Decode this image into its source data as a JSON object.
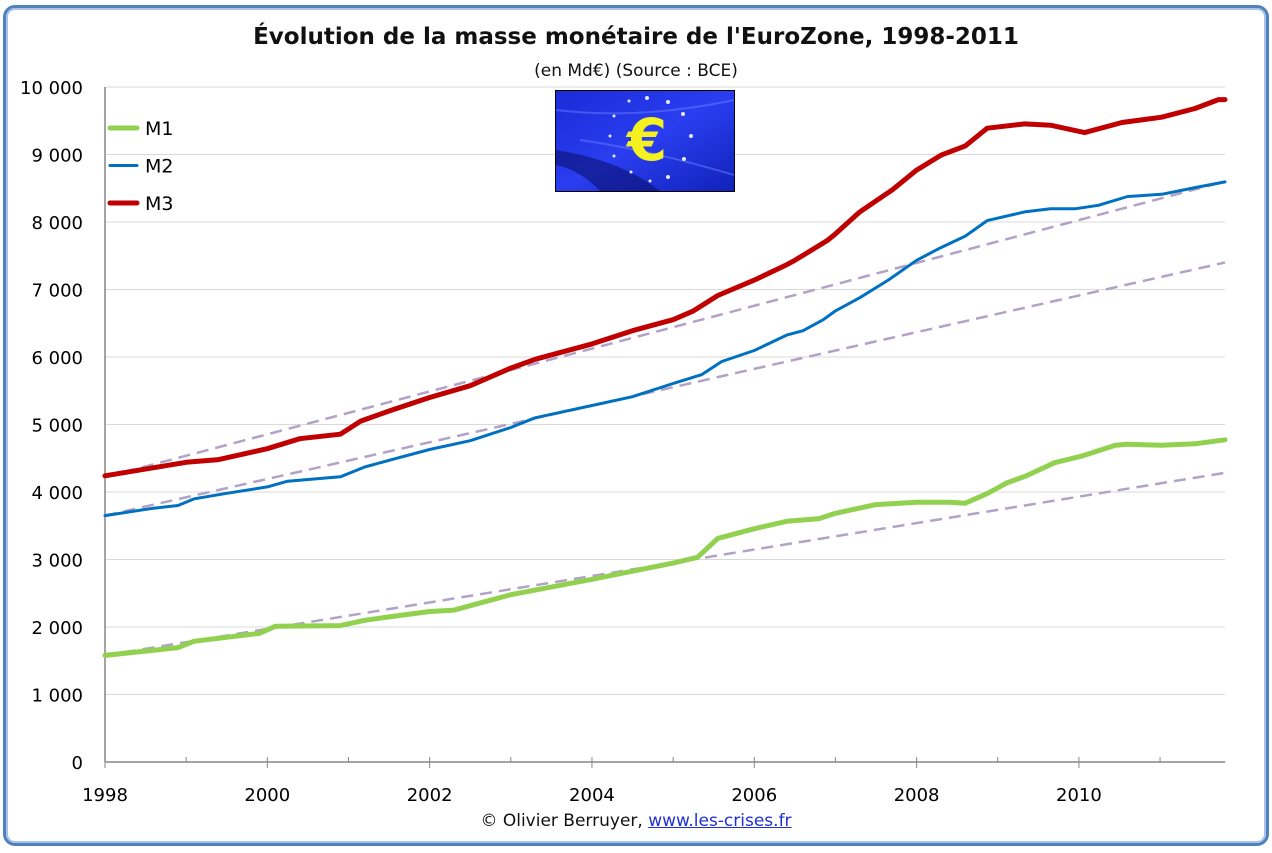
{
  "chart_data": {
    "type": "line",
    "title": "Évolution de la masse monétaire de l'EuroZone, 1998-2011",
    "subtitle": "(en Md€) (Source : BCE)",
    "xlabel": "",
    "ylabel": "",
    "xlim": [
      1998,
      2011.8
    ],
    "ylim": [
      0,
      10000
    ],
    "x_tick_labels": [
      "1998",
      "2000",
      "2002",
      "2004",
      "2006",
      "2008",
      "2010"
    ],
    "y_tick_labels": [
      "0",
      "1 000",
      "2 000",
      "3 000",
      "4 000",
      "5 000",
      "6 000",
      "7 000",
      "8 000",
      "9 000",
      "10 000"
    ],
    "grid": true,
    "legend_position": "top-left",
    "series": [
      {
        "name": "M1",
        "color": "#92d050",
        "points": [
          [
            1998,
            1580
          ],
          [
            1998.9,
            1695
          ],
          [
            1999.1,
            1790
          ],
          [
            1999.9,
            1905
          ],
          [
            2000.1,
            2010
          ],
          [
            2000.9,
            2020
          ],
          [
            2001.2,
            2100
          ],
          [
            2001.5,
            2150
          ],
          [
            2002,
            2230
          ],
          [
            2002.3,
            2250
          ],
          [
            2003,
            2478
          ],
          [
            2004,
            2706
          ],
          [
            2005,
            2947
          ],
          [
            2005.3,
            3032
          ],
          [
            2005.55,
            3312
          ],
          [
            2006,
            3456
          ],
          [
            2006.4,
            3566
          ],
          [
            2006.8,
            3606
          ],
          [
            2007,
            3684
          ],
          [
            2007.5,
            3814
          ],
          [
            2008,
            3847
          ],
          [
            2008.4,
            3847
          ],
          [
            2008.6,
            3834
          ],
          [
            2008.87,
            3977
          ],
          [
            2009.12,
            4140
          ],
          [
            2009.35,
            4238
          ],
          [
            2009.7,
            4434
          ],
          [
            2010.03,
            4531
          ],
          [
            2010.45,
            4694
          ],
          [
            2010.6,
            4707
          ],
          [
            2011.02,
            4694
          ],
          [
            2011.43,
            4714
          ],
          [
            2011.8,
            4773
          ]
        ]
      },
      {
        "name": "M2",
        "color": "#0070c0",
        "points": [
          [
            1998,
            3650
          ],
          [
            1998.6,
            3760
          ],
          [
            1998.9,
            3800
          ],
          [
            1999.1,
            3900
          ],
          [
            1999.5,
            3980
          ],
          [
            2000,
            4075
          ],
          [
            2000.25,
            4160
          ],
          [
            2000.9,
            4225
          ],
          [
            2001.2,
            4370
          ],
          [
            2001.5,
            4470
          ],
          [
            2002,
            4629
          ],
          [
            2002.5,
            4760
          ],
          [
            2003,
            4955
          ],
          [
            2003.3,
            5099
          ],
          [
            2004,
            5281
          ],
          [
            2004.5,
            5412
          ],
          [
            2005,
            5607
          ],
          [
            2005.35,
            5738
          ],
          [
            2005.6,
            5933
          ],
          [
            2006,
            6096
          ],
          [
            2006.4,
            6324
          ],
          [
            2006.6,
            6390
          ],
          [
            2006.85,
            6553
          ],
          [
            2007,
            6683
          ],
          [
            2007.3,
            6879
          ],
          [
            2007.65,
            7139
          ],
          [
            2008,
            7433
          ],
          [
            2008.3,
            7620
          ],
          [
            2008.6,
            7791
          ],
          [
            2008.87,
            8020
          ],
          [
            2009.33,
            8150
          ],
          [
            2009.65,
            8196
          ],
          [
            2009.95,
            8196
          ],
          [
            2010.24,
            8248
          ],
          [
            2010.6,
            8378
          ],
          [
            2011.02,
            8411
          ],
          [
            2011.43,
            8509
          ],
          [
            2011.8,
            8594
          ]
        ]
      },
      {
        "name": "M3",
        "color": "#c00000",
        "points": [
          [
            1998,
            4240
          ],
          [
            1999,
            4440
          ],
          [
            1999.4,
            4480
          ],
          [
            2000,
            4642
          ],
          [
            2000.4,
            4790
          ],
          [
            2000.9,
            4857
          ],
          [
            2001.15,
            5050
          ],
          [
            2001.5,
            5200
          ],
          [
            2002,
            5400
          ],
          [
            2002.5,
            5575
          ],
          [
            2003,
            5835
          ],
          [
            2003.3,
            5966
          ],
          [
            2004,
            6194
          ],
          [
            2004.5,
            6390
          ],
          [
            2005,
            6553
          ],
          [
            2005.25,
            6683
          ],
          [
            2005.55,
            6911
          ],
          [
            2006,
            7139
          ],
          [
            2006.4,
            7368
          ],
          [
            2006.5,
            7433
          ],
          [
            2006.9,
            7726
          ],
          [
            2007,
            7824
          ],
          [
            2007.3,
            8150
          ],
          [
            2007.7,
            8476
          ],
          [
            2008,
            8769
          ],
          [
            2008.3,
            8990
          ],
          [
            2008.6,
            9128
          ],
          [
            2008.87,
            9389
          ],
          [
            2009.33,
            9454
          ],
          [
            2009.65,
            9434
          ],
          [
            2010.07,
            9324
          ],
          [
            2010.53,
            9474
          ],
          [
            2011.02,
            9552
          ],
          [
            2011.43,
            9682
          ],
          [
            2011.72,
            9813
          ],
          [
            2011.8,
            9813
          ]
        ]
      }
    ],
    "trend_lines": [
      {
        "color": "#b3a2c7",
        "points": [
          [
            1998,
            4220
          ],
          [
            2011.8,
            8600
          ]
        ]
      },
      {
        "color": "#b3a2c7",
        "points": [
          [
            1998,
            3650
          ],
          [
            2011.8,
            7400
          ]
        ]
      },
      {
        "color": "#b3a2c7",
        "points": [
          [
            1998,
            1580
          ],
          [
            2011.8,
            4284
          ]
        ]
      }
    ]
  },
  "image": {
    "name": "euro-flag",
    "symbol": "€"
  },
  "credit": {
    "text": "© Olivier Berruyer,",
    "link": "www.les-crises.fr"
  },
  "colors": {
    "frame": "#4f81bd",
    "grid": "#d9d9d9",
    "axis": "#868686"
  }
}
